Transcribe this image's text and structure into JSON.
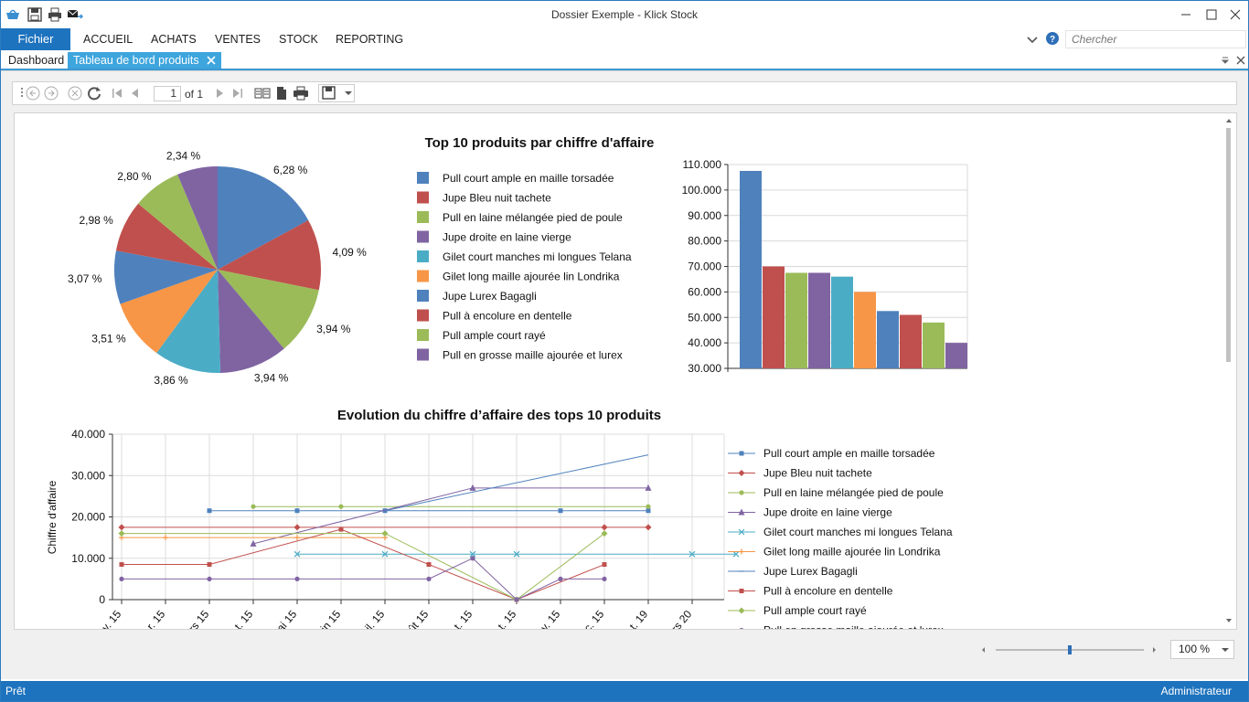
{
  "window": {
    "title": "Dossier Exemple - Klick Stock"
  },
  "menu": {
    "file_label": "Fichier",
    "items": [
      "ACCUEIL",
      "ACHATS",
      "VENTES",
      "STOCK",
      "REPORTING"
    ],
    "search_placeholder": "Chercher"
  },
  "tabs": [
    {
      "label": "Dashboard"
    },
    {
      "label": "Tableau de bord produits"
    }
  ],
  "toolbar": {
    "page_value": "1",
    "page_of": "of 1"
  },
  "zoom": {
    "value": "100 %",
    "slider_fraction": 0.5
  },
  "status": {
    "left": "Prêt",
    "right": "Administrateur"
  },
  "colors": {
    "accent": "#1e73be",
    "palette": [
      "#4f81bd",
      "#c0504d",
      "#9bbb59",
      "#8064a2",
      "#4bacc6",
      "#f79646",
      "#4f81bd",
      "#c0504d",
      "#9bbb59",
      "#8064a2"
    ]
  },
  "chart_data": [
    {
      "type": "pie",
      "title": "Top 10 produits par chiffre d'affaire",
      "categories": [
        "Pull court ample en maille torsadée",
        "Jupe Bleu nuit tachete",
        "Pull en laine mélangée pied de poule",
        "Jupe droite en laine vierge",
        "Gilet court manches mi longues Telana",
        "Gilet long maille ajourée lin Londrika",
        "Jupe Lurex Bagagli",
        "Pull à encolure en dentelle",
        "Pull ample court rayé",
        "Pull en grosse maille ajourée et lurex"
      ],
      "values": [
        6.28,
        4.09,
        3.94,
        3.94,
        3.86,
        3.51,
        3.07,
        2.98,
        2.8,
        2.34
      ],
      "data_labels": [
        "6,28 %",
        "4,09 %",
        "3,94 %",
        "3,94 %",
        "3,86 %",
        "3,51 %",
        "3,07 %",
        "2,98 %",
        "2,80 %",
        "2,34 %"
      ],
      "legend": "right"
    },
    {
      "type": "bar",
      "categories": [
        "Pull court ample en maille torsadée",
        "Jupe Bleu nuit tachete",
        "Pull en laine mélangée pied de poule",
        "Jupe droite en laine vierge",
        "Gilet court manches mi longues Telana",
        "Gilet long maille ajourée lin Londrika",
        "Jupe Lurex Bagagli",
        "Pull à encolure en dentelle",
        "Pull ample court rayé",
        "Pull en grosse maille ajourée et lurex"
      ],
      "values": [
        107500,
        70000,
        67500,
        67500,
        66000,
        60000,
        52500,
        51000,
        48000,
        40000
      ],
      "ylim": [
        30000,
        110000
      ],
      "yticks": [
        "30.000",
        "40.000",
        "50.000",
        "60.000",
        "70.000",
        "80.000",
        "90.000",
        "100.000",
        "110.000"
      ],
      "grid": true
    },
    {
      "type": "line",
      "title": "Evolution du chiffre d’affaire des tops 10 produits",
      "ylabel": "Chiffre d'affaire",
      "ylim": [
        0,
        40000
      ],
      "yticks": [
        "0",
        "10.000",
        "20.000",
        "30.000",
        "40.000"
      ],
      "x_tick_labels": [
        "v. 15",
        "r. 15",
        "rs 15",
        "t. 15",
        "ai 15",
        "in 15",
        "il. 15",
        "ût 15",
        "t. 15",
        "t. 15",
        "v. 15",
        "c. 15",
        "t. 19",
        "rs 20"
      ],
      "legend": "right",
      "series": [
        {
          "name": "Pull court ample en maille torsadée",
          "marker": "square",
          "points": [
            [
              2,
              21500
            ],
            [
              4,
              21500
            ],
            [
              6,
              21500
            ],
            [
              10,
              21500
            ],
            [
              12,
              21500
            ]
          ]
        },
        {
          "name": "Jupe Bleu nuit tachete",
          "marker": "diamond",
          "points": [
            [
              0,
              17500
            ],
            [
              4,
              17500
            ],
            [
              11,
              17500
            ],
            [
              12,
              17500
            ]
          ]
        },
        {
          "name": "Pull en laine mélangée pied de poule",
          "marker": "circle",
          "points": [
            [
              3,
              22500
            ],
            [
              5,
              22500
            ],
            [
              12,
              22500
            ]
          ]
        },
        {
          "name": "Jupe droite en laine vierge",
          "marker": "triangle",
          "points": [
            [
              3,
              13500
            ],
            [
              8,
              27000
            ],
            [
              12,
              27000
            ]
          ]
        },
        {
          "name": "Gilet court manches mi longues Telana",
          "marker": "x",
          "points": [
            [
              4,
              11000
            ],
            [
              6,
              11000
            ],
            [
              8,
              11000
            ],
            [
              9,
              11000
            ],
            [
              13,
              11000
            ],
            [
              14,
              11000
            ]
          ]
        },
        {
          "name": "Gilet long maille ajourée lin Londrika",
          "marker": "plus",
          "points": [
            [
              0,
              15000
            ],
            [
              1,
              15000
            ],
            [
              4,
              15000
            ],
            [
              6,
              15000
            ]
          ]
        },
        {
          "name": "Jupe Lurex Bagagli",
          "marker": "dash",
          "points": [
            [
              6,
              21500
            ],
            [
              12,
              35000
            ]
          ]
        },
        {
          "name": "Pull à encolure en dentelle",
          "marker": "square",
          "points": [
            [
              0,
              8500
            ],
            [
              2,
              8500
            ],
            [
              5,
              17000
            ],
            [
              7,
              8500
            ],
            [
              9,
              0
            ],
            [
              11,
              8500
            ]
          ]
        },
        {
          "name": "Pull ample court rayé",
          "marker": "diamond",
          "points": [
            [
              0,
              16000
            ],
            [
              6,
              16000
            ],
            [
              9,
              0
            ],
            [
              11,
              16000
            ]
          ]
        },
        {
          "name": "Pull en grosse maille ajourée et lurex",
          "marker": "circle",
          "points": [
            [
              0,
              5000
            ],
            [
              2,
              5000
            ],
            [
              4,
              5000
            ],
            [
              7,
              5000
            ],
            [
              8,
              10000
            ],
            [
              9,
              0
            ],
            [
              10,
              5000
            ],
            [
              11,
              5000
            ]
          ]
        }
      ]
    }
  ]
}
